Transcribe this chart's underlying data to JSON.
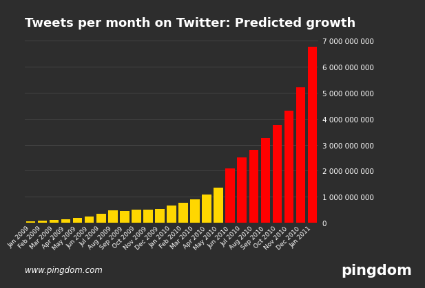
{
  "title": "Tweets per month on Twitter: Predicted growth",
  "categories": [
    "Jan 2009",
    "Feb 2009",
    "Mar 2009",
    "Apr 2009",
    "May 2009",
    "Jun 2009",
    "Jul 2009",
    "Aug 2009",
    "Sep 2009",
    "Oct 2009",
    "Nov 2009",
    "Dec 2009",
    "Jan 2010",
    "Feb 2010",
    "Mar 2010",
    "Apr 2010",
    "May 2010",
    "Jun 2010",
    "Jul 2010",
    "Aug 2010",
    "Sep 2010",
    "Oct 2010",
    "Nov 2010",
    "Dec 2010",
    "Jan 2011"
  ],
  "values": [
    70000000,
    80000000,
    105000000,
    140000000,
    185000000,
    235000000,
    360000000,
    480000000,
    465000000,
    515000000,
    495000000,
    545000000,
    660000000,
    760000000,
    910000000,
    1100000000,
    1350000000,
    2100000000,
    2500000000,
    2800000000,
    3250000000,
    3750000000,
    4300000000,
    5200000000,
    6750000000
  ],
  "colors": [
    "#FFD700",
    "#FFD700",
    "#FFD700",
    "#FFD700",
    "#FFD700",
    "#FFD700",
    "#FFD700",
    "#FFD700",
    "#FFD700",
    "#FFD700",
    "#FFD700",
    "#FFD700",
    "#FFD700",
    "#FFD700",
    "#FFD700",
    "#FFD700",
    "#FFD700",
    "#FF0000",
    "#FF0000",
    "#FF0000",
    "#FF0000",
    "#FF0000",
    "#FF0000",
    "#FF0000",
    "#FF0000"
  ],
  "background_color": "#2d2d2d",
  "title_bg_color": "#101010",
  "grid_color": "#484848",
  "text_color": "#ffffff",
  "ylim": [
    0,
    7000000000
  ],
  "yticks": [
    0,
    1000000000,
    2000000000,
    3000000000,
    4000000000,
    5000000000,
    6000000000,
    7000000000
  ],
  "footer_left": "www.pingdom.com",
  "footer_right": "pingdom",
  "title_fontsize": 13,
  "tick_fontsize": 6.5,
  "ytick_fontsize": 7.5
}
